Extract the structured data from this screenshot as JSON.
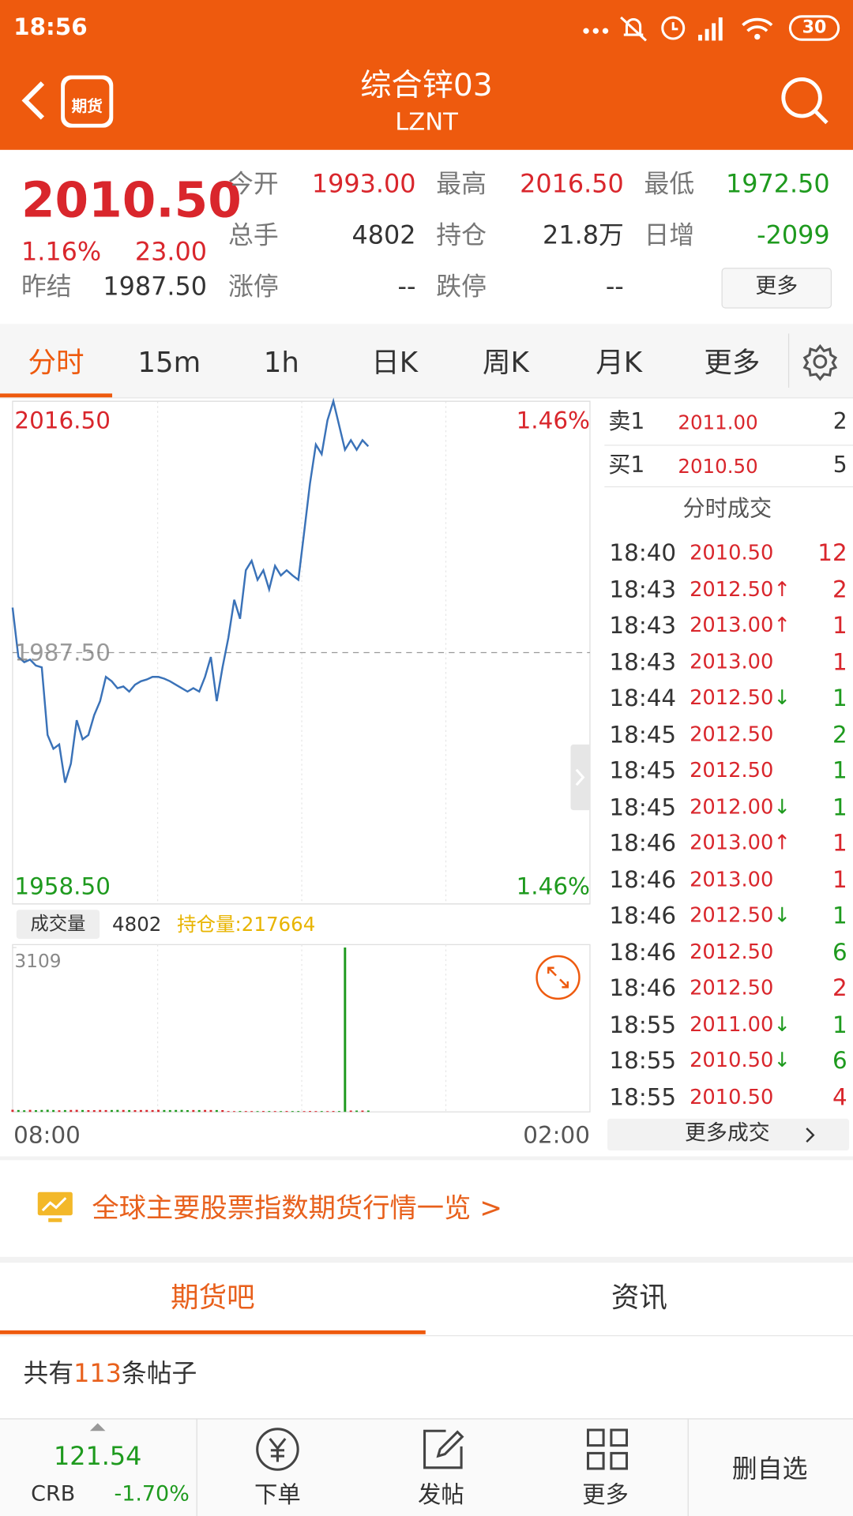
{
  "status_bar": {
    "time": "18:56",
    "battery": "30"
  },
  "header": {
    "app_icon_text": "期货",
    "title": "综合锌03",
    "subtitle": "LZNT"
  },
  "quote": {
    "price": "2010.50",
    "change_pct": "1.16%",
    "change": "23.00",
    "prev_close_label": "昨结",
    "prev_close": "1987.50",
    "fields": [
      {
        "label": "今开",
        "value": "1993.00",
        "color": "#d9262c"
      },
      {
        "label": "最高",
        "value": "2016.50",
        "color": "#d9262c"
      },
      {
        "label": "最低",
        "value": "1972.50",
        "color": "#1e9a1e"
      },
      {
        "label": "总手",
        "value": "4802",
        "color": "#333333"
      },
      {
        "label": "持仓",
        "value": "21.8万",
        "color": "#333333"
      },
      {
        "label": "日增",
        "value": "-2099",
        "color": "#1e9a1e"
      },
      {
        "label": "涨停",
        "value": "--",
        "color": "#333333"
      },
      {
        "label": "跌停",
        "value": "--",
        "color": "#333333"
      }
    ],
    "more": "更多"
  },
  "tabs": [
    "分时",
    "15m",
    "1h",
    "日K",
    "周K",
    "月K",
    "更多"
  ],
  "intraday": {
    "type": "line",
    "color": "#3a72b8",
    "ylim": [
      1958.5,
      2016.5
    ],
    "yticks": [
      {
        "value": 1958.5,
        "label": "1958.50"
      },
      {
        "value": 1987.5,
        "label": "1987.50"
      },
      {
        "value": 2016.5,
        "label": "2016.50"
      }
    ],
    "pct_labels": [
      "1.46%",
      "1.46%"
    ],
    "xlabels": [
      "08:00",
      "02:00"
    ],
    "values": [
      1992.7,
      1987.0,
      1986.4,
      1986.7,
      1986.0,
      1985.8,
      1978.0,
      1976.4,
      1976.9,
      1972.5,
      1974.7,
      1979.7,
      1977.5,
      1978.0,
      1980.3,
      1981.9,
      1984.7,
      1984.2,
      1983.4,
      1983.6,
      1983.0,
      1983.8,
      1984.2,
      1984.4,
      1984.7,
      1984.7,
      1984.5,
      1984.2,
      1983.8,
      1983.4,
      1983.0,
      1983.4,
      1983.0,
      1984.7,
      1987.0,
      1981.9,
      1985.8,
      1989.2,
      1993.6,
      1991.4,
      1997.0,
      1998.1,
      1995.9,
      1997.0,
      1994.8,
      1997.5,
      1996.4,
      1997.0,
      1996.4,
      1995.9,
      2001.4,
      2007.0,
      2011.5,
      2010.4,
      2014.3,
      2016.5,
      2013.7,
      2010.9,
      2012.0,
      2010.9,
      2012.0,
      2011.3,
      null,
      null,
      null,
      null,
      null,
      null,
      null,
      null,
      null,
      null,
      null,
      null,
      null,
      null,
      null,
      null,
      null,
      null,
      null,
      null,
      null,
      null,
      null,
      null,
      null,
      null,
      null,
      null,
      null,
      null,
      null,
      null,
      null,
      null,
      null,
      null,
      null,
      null
    ]
  },
  "volume": {
    "type": "bar",
    "label": "成交量",
    "total": "4802",
    "open_interest": "持仓量:217664",
    "ylim": [
      0,
      3109
    ],
    "yticks": [
      3109
    ],
    "values": [
      40,
      35,
      30,
      38,
      32,
      36,
      40,
      35,
      30,
      34,
      36,
      38,
      35,
      33,
      32,
      36,
      34,
      35,
      37,
      36,
      34,
      33,
      35,
      36,
      34,
      38,
      35,
      34,
      36,
      37,
      33,
      35,
      34,
      36,
      35,
      34,
      33,
      15,
      14,
      16,
      15,
      15,
      14,
      16,
      15,
      15,
      14,
      16,
      15,
      15,
      14,
      16,
      15,
      15,
      14,
      16,
      15,
      3109,
      25,
      25,
      25,
      25
    ]
  },
  "order_book": [
    {
      "side": "卖1",
      "price": "2011.00",
      "qty": "2"
    },
    {
      "side": "买1",
      "price": "2010.50",
      "qty": "5"
    }
  ],
  "trades_title": "分时成交",
  "trades": [
    {
      "time": "18:40",
      "price": "2010.50",
      "qty": "12",
      "qty_color": "#d9262c"
    },
    {
      "time": "18:43",
      "price": "2012.50",
      "dir": "↑",
      "qty": "2",
      "qty_color": "#d9262c"
    },
    {
      "time": "18:43",
      "price": "2013.00",
      "dir": "↑",
      "qty": "1",
      "qty_color": "#d9262c"
    },
    {
      "time": "18:43",
      "price": "2013.00",
      "qty": "1",
      "qty_color": "#d9262c"
    },
    {
      "time": "18:44",
      "price": "2012.50",
      "dir": "↓",
      "qty": "1",
      "qty_color": "#1e9a1e"
    },
    {
      "time": "18:45",
      "price": "2012.50",
      "qty": "2",
      "qty_color": "#1e9a1e"
    },
    {
      "time": "18:45",
      "price": "2012.50",
      "qty": "1",
      "qty_color": "#1e9a1e"
    },
    {
      "time": "18:45",
      "price": "2012.00",
      "dir": "↓",
      "qty": "1",
      "qty_color": "#1e9a1e"
    },
    {
      "time": "18:46",
      "price": "2013.00",
      "dir": "↑",
      "qty": "1",
      "qty_color": "#d9262c"
    },
    {
      "time": "18:46",
      "price": "2013.00",
      "qty": "1",
      "qty_color": "#d9262c"
    },
    {
      "time": "18:46",
      "price": "2012.50",
      "dir": "↓",
      "qty": "1",
      "qty_color": "#1e9a1e"
    },
    {
      "time": "18:46",
      "price": "2012.50",
      "qty": "6",
      "qty_color": "#1e9a1e"
    },
    {
      "time": "18:46",
      "price": "2012.50",
      "qty": "2",
      "qty_color": "#d9262c"
    },
    {
      "time": "18:55",
      "price": "2011.00",
      "dir": "↓",
      "qty": "1",
      "qty_color": "#1e9a1e"
    },
    {
      "time": "18:55",
      "price": "2010.50",
      "dir": "↓",
      "qty": "6",
      "qty_color": "#1e9a1e"
    },
    {
      "time": "18:55",
      "price": "2010.50",
      "qty": "4",
      "qty_color": "#d9262c"
    }
  ],
  "more_trades": "更多成交",
  "banner": "全球主要股票指数期货行情一览 >",
  "bottom_tabs": [
    "期货吧",
    "资讯"
  ],
  "posts": {
    "prefix": "共有",
    "count": "113",
    "suffix": "条帖子"
  },
  "footer": {
    "crb_value": "121.54",
    "crb_label": "CRB",
    "crb_change": "-1.70%",
    "buttons": [
      "下单",
      "发帖",
      "更多"
    ],
    "remove": "删自选"
  }
}
